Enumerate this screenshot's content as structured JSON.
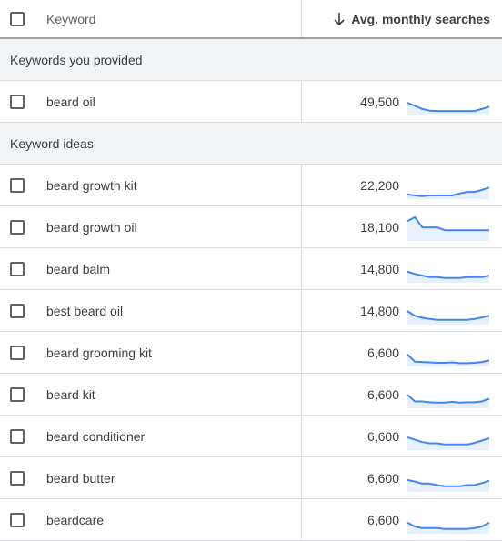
{
  "header": {
    "keyword_label": "Keyword",
    "searches_label": "Avg. monthly searches",
    "sort_icon": "arrow-down-icon"
  },
  "sections": [
    {
      "label": "Keywords you provided",
      "rows": [
        {
          "keyword": "beard oil",
          "searches": "49,500",
          "trend": [
            60,
            52,
            44,
            40,
            39,
            39,
            39,
            39,
            39,
            39,
            44,
            50
          ]
        }
      ]
    },
    {
      "label": "Keyword ideas",
      "rows": [
        {
          "keyword": "beard growth kit",
          "searches": "22,200",
          "trend": [
            40,
            37,
            35,
            37,
            37,
            37,
            37,
            42,
            46,
            46,
            51,
            57
          ]
        },
        {
          "keyword": "beard growth oil",
          "searches": "18,100",
          "trend": [
            78,
            88,
            62,
            62,
            62,
            55,
            55,
            55,
            55,
            55,
            55,
            55
          ]
        },
        {
          "keyword": "beard balm",
          "searches": "14,800",
          "trend": [
            56,
            50,
            46,
            42,
            42,
            40,
            40,
            40,
            42,
            42,
            42,
            46
          ]
        },
        {
          "keyword": "best beard oil",
          "searches": "14,800",
          "trend": [
            62,
            50,
            45,
            42,
            40,
            40,
            40,
            40,
            40,
            42,
            46,
            50
          ]
        },
        {
          "keyword": "beard grooming kit",
          "searches": "6,600",
          "trend": [
            58,
            40,
            39,
            38,
            37,
            37,
            38,
            36,
            36,
            37,
            39,
            43
          ]
        },
        {
          "keyword": "beard kit",
          "searches": "6,600",
          "trend": [
            62,
            45,
            45,
            43,
            42,
            42,
            44,
            42,
            43,
            43,
            45,
            52
          ]
        },
        {
          "keyword": "beard conditioner",
          "searches": "6,600",
          "trend": [
            60,
            54,
            48,
            45,
            45,
            42,
            42,
            42,
            42,
            46,
            52,
            58
          ]
        },
        {
          "keyword": "beard butter",
          "searches": "6,600",
          "trend": [
            58,
            54,
            49,
            49,
            45,
            42,
            42,
            42,
            45,
            45,
            50,
            56
          ]
        },
        {
          "keyword": "beardcare",
          "searches": "6,600",
          "trend": [
            56,
            46,
            42,
            42,
            42,
            40,
            40,
            40,
            40,
            42,
            46,
            56
          ]
        }
      ]
    }
  ],
  "colors": {
    "spark_line": "#4285f4",
    "spark_fill": "#e8f0fe"
  }
}
